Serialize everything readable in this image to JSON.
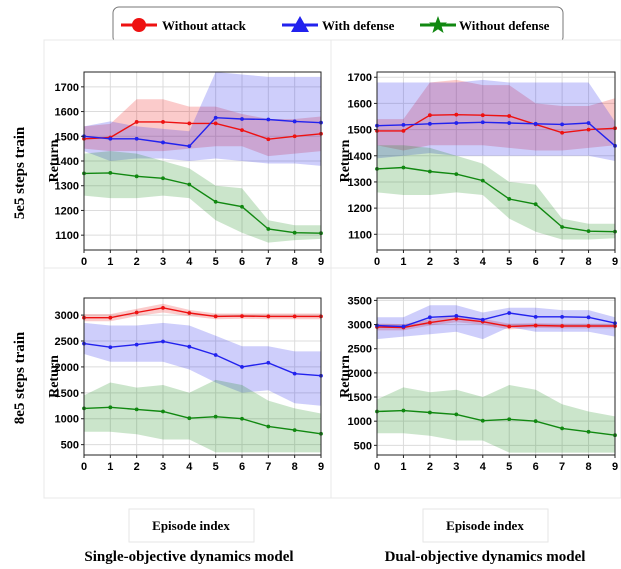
{
  "legend": {
    "items": [
      {
        "label": "Without attack",
        "color": "#ee1111",
        "marker": "circle"
      },
      {
        "label": "With defense",
        "color": "#2222ee",
        "marker": "triangle"
      },
      {
        "label": "Without defense",
        "color": "#118811",
        "marker": "star"
      }
    ]
  },
  "row_labels": [
    "5e5 steps train",
    "8e5 steps train"
  ],
  "column_titles": [
    "Single-objective dynamics model",
    "Dual-objective dynamics model"
  ],
  "bottom_axis_labels": [
    "Episode index",
    "Episode index"
  ],
  "chart_data": [
    {
      "type": "line",
      "xlabel": "Episode index",
      "ylabel": "Return",
      "x": [
        0,
        1,
        2,
        3,
        4,
        5,
        6,
        7,
        8,
        9
      ],
      "xlim": [
        0,
        9
      ],
      "ylim": [
        1040,
        1760
      ],
      "yticks": [
        1100,
        1200,
        1300,
        1400,
        1500,
        1600,
        1700
      ],
      "grid": true,
      "series": [
        {
          "name": "Without attack",
          "color": "#ee1111",
          "values": [
            1490,
            1495,
            1558,
            1558,
            1552,
            1552,
            1525,
            1488,
            1500,
            1510
          ],
          "lower": [
            1450,
            1440,
            1440,
            1440,
            1450,
            1460,
            1460,
            1420,
            1430,
            1440
          ],
          "upper": [
            1540,
            1550,
            1650,
            1650,
            1620,
            1620,
            1590,
            1570,
            1570,
            1580
          ]
        },
        {
          "name": "With defense",
          "color": "#2222ee",
          "values": [
            1500,
            1490,
            1490,
            1475,
            1460,
            1575,
            1570,
            1568,
            1560,
            1555
          ],
          "lower": [
            1440,
            1400,
            1410,
            1410,
            1400,
            1410,
            1400,
            1390,
            1390,
            1380
          ],
          "upper": [
            1540,
            1560,
            1540,
            1530,
            1520,
            1760,
            1750,
            1740,
            1740,
            1740
          ]
        },
        {
          "name": "Without defense",
          "color": "#118811",
          "values": [
            1350,
            1352,
            1338,
            1330,
            1305,
            1235,
            1215,
            1125,
            1110,
            1108
          ],
          "lower": [
            1260,
            1250,
            1250,
            1260,
            1250,
            1160,
            1110,
            1070,
            1080,
            1085
          ],
          "upper": [
            1430,
            1440,
            1430,
            1400,
            1370,
            1300,
            1290,
            1160,
            1140,
            1140
          ]
        }
      ]
    },
    {
      "type": "line",
      "xlabel": "Episode index",
      "ylabel": "Return",
      "x": [
        0,
        1,
        2,
        3,
        4,
        5,
        6,
        7,
        8,
        9
      ],
      "xlim": [
        0,
        9
      ],
      "ylim": [
        1040,
        1720
      ],
      "yticks": [
        1100,
        1200,
        1300,
        1400,
        1500,
        1600,
        1700
      ],
      "grid": true,
      "series": [
        {
          "name": "Without attack",
          "color": "#ee1111",
          "values": [
            1495,
            1495,
            1555,
            1557,
            1555,
            1552,
            1520,
            1488,
            1500,
            1505
          ],
          "lower": [
            1440,
            1420,
            1440,
            1440,
            1440,
            1430,
            1420,
            1420,
            1430,
            1440
          ],
          "upper": [
            1540,
            1540,
            1680,
            1690,
            1670,
            1670,
            1600,
            1590,
            1590,
            1620
          ]
        },
        {
          "name": "With defense",
          "color": "#2222ee",
          "values": [
            1515,
            1518,
            1522,
            1525,
            1528,
            1525,
            1522,
            1520,
            1525,
            1438
          ],
          "lower": [
            1390,
            1400,
            1410,
            1400,
            1400,
            1400,
            1400,
            1400,
            1400,
            1380
          ],
          "upper": [
            1680,
            1680,
            1680,
            1680,
            1690,
            1680,
            1680,
            1680,
            1680,
            1530
          ]
        },
        {
          "name": "Without defense",
          "color": "#118811",
          "values": [
            1350,
            1355,
            1340,
            1330,
            1305,
            1235,
            1215,
            1128,
            1112,
            1110
          ],
          "lower": [
            1260,
            1250,
            1250,
            1260,
            1250,
            1160,
            1110,
            1080,
            1080,
            1085
          ],
          "upper": [
            1440,
            1440,
            1430,
            1400,
            1370,
            1300,
            1290,
            1160,
            1140,
            1140
          ]
        }
      ]
    },
    {
      "type": "line",
      "xlabel": "",
      "ylabel": "Return",
      "x": [
        0,
        1,
        2,
        3,
        4,
        5,
        6,
        7,
        8,
        9
      ],
      "xlim": [
        0,
        9
      ],
      "ylim": [
        300,
        3330
      ],
      "yticks": [
        500,
        1000,
        1500,
        2000,
        2500,
        3000
      ],
      "grid": true,
      "series": [
        {
          "name": "Without attack",
          "color": "#ee1111",
          "values": [
            2950,
            2950,
            3050,
            3140,
            3040,
            2975,
            2980,
            2975,
            2975,
            2975
          ],
          "lower": [
            2880,
            2880,
            2980,
            3050,
            2980,
            2920,
            2930,
            2920,
            2920,
            2920
          ],
          "upper": [
            3020,
            3020,
            3120,
            3220,
            3100,
            3030,
            3030,
            3030,
            3030,
            3030
          ]
        },
        {
          "name": "With defense",
          "color": "#2222ee",
          "values": [
            2450,
            2380,
            2430,
            2490,
            2390,
            2230,
            2000,
            2080,
            1870,
            1830
          ],
          "lower": [
            2250,
            2100,
            2100,
            2100,
            1950,
            1700,
            1500,
            1550,
            1300,
            1250
          ],
          "upper": [
            2850,
            2800,
            2800,
            2850,
            2800,
            2600,
            2400,
            2400,
            2300,
            2300
          ]
        },
        {
          "name": "Without defense",
          "color": "#118811",
          "values": [
            1200,
            1220,
            1180,
            1140,
            1010,
            1040,
            1000,
            850,
            780,
            710
          ],
          "lower": [
            750,
            750,
            700,
            600,
            600,
            350,
            350,
            350,
            350,
            350
          ],
          "upper": [
            1450,
            1700,
            1600,
            1650,
            1500,
            1750,
            1650,
            1350,
            1200,
            1100
          ]
        }
      ]
    },
    {
      "type": "line",
      "xlabel": "",
      "ylabel": "Return",
      "x": [
        0,
        1,
        2,
        3,
        4,
        5,
        6,
        7,
        8,
        9
      ],
      "xlim": [
        0,
        9
      ],
      "ylim": [
        300,
        3550
      ],
      "yticks": [
        500,
        1000,
        1500,
        2000,
        2500,
        3000,
        3500
      ],
      "grid": true,
      "series": [
        {
          "name": "Without attack",
          "color": "#ee1111",
          "values": [
            2950,
            2940,
            3040,
            3120,
            3060,
            2960,
            2980,
            2970,
            2970,
            2970
          ],
          "lower": [
            2880,
            2880,
            2980,
            3050,
            3000,
            2900,
            2930,
            2920,
            2920,
            2920
          ],
          "upper": [
            3020,
            3010,
            3110,
            3190,
            3120,
            3020,
            3030,
            3020,
            3020,
            3020
          ]
        },
        {
          "name": "With defense",
          "color": "#2222ee",
          "values": [
            2980,
            2960,
            3150,
            3180,
            3100,
            3240,
            3160,
            3160,
            3150,
            3030
          ],
          "lower": [
            2700,
            2750,
            2800,
            2850,
            2700,
            2950,
            2850,
            2850,
            2850,
            2750
          ],
          "upper": [
            3150,
            3150,
            3400,
            3400,
            3250,
            3350,
            3350,
            3300,
            3300,
            3150
          ]
        },
        {
          "name": "Without defense",
          "color": "#118811",
          "values": [
            1200,
            1220,
            1180,
            1140,
            1010,
            1040,
            1000,
            850,
            780,
            710
          ],
          "lower": [
            750,
            750,
            700,
            600,
            600,
            350,
            350,
            350,
            350,
            350
          ],
          "upper": [
            1450,
            1700,
            1600,
            1650,
            1500,
            1750,
            1650,
            1350,
            1200,
            1100
          ]
        }
      ]
    }
  ]
}
